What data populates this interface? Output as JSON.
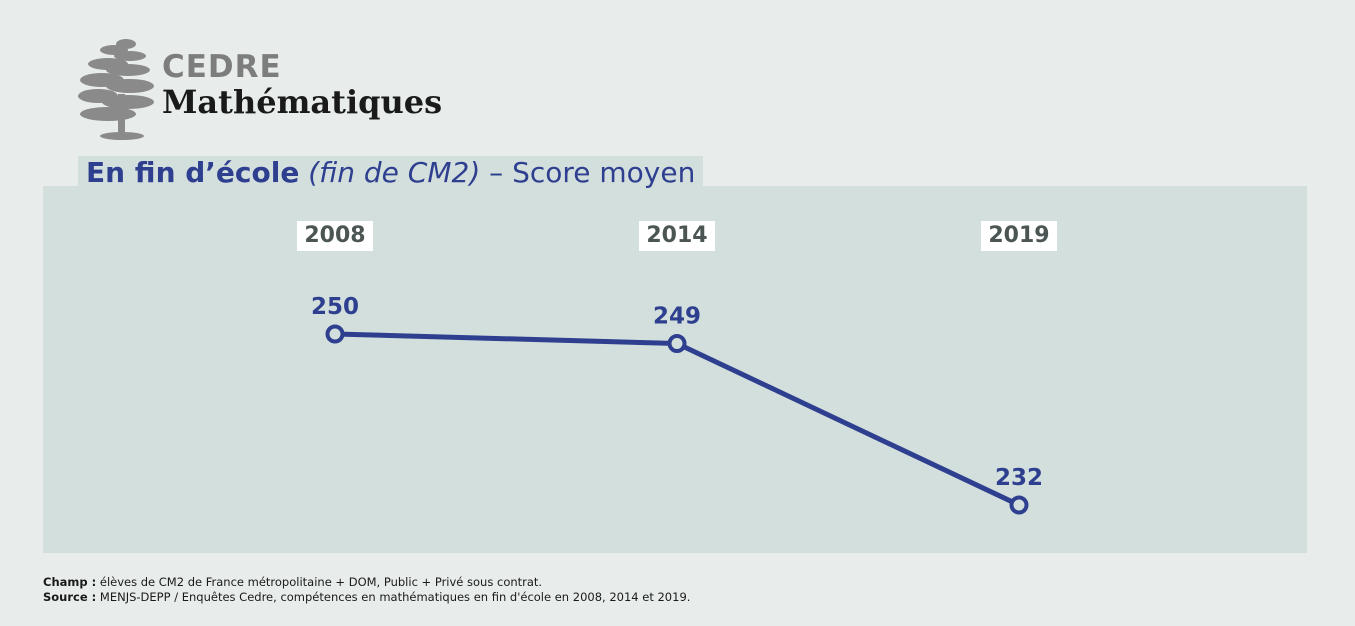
{
  "logo": {
    "brand": "CEDRE",
    "subject": "Mathématiques",
    "icon": "cedar-tree-icon"
  },
  "title": {
    "part1": "En fin d’école",
    "part2": "(fin de CM2)",
    "part3": "– Score moyen"
  },
  "colors": {
    "line": "#2e3f8f",
    "panel": "#d3dfdd",
    "background": "#e8edeb",
    "year_label": "#4b5553"
  },
  "chart_data": {
    "type": "line",
    "title": "En fin d’école (fin de CM2) – Score moyen",
    "categories": [
      "2008",
      "2014",
      "2019"
    ],
    "series": [
      {
        "values": [
          250,
          249,
          232
        ]
      }
    ],
    "value_labels": [
      "250",
      "249",
      "232"
    ],
    "grid": false
  },
  "notes": {
    "champ_label": "Champ :",
    "champ_text": "élèves de CM2 de France métropolitaine + DOM, Public + Privé sous contrat.",
    "source_label": "Source :",
    "source_text": "MENJS-DEPP / Enquêtes Cedre, compétences en mathématiques en fin d'école en 2008, 2014 et 2019."
  }
}
